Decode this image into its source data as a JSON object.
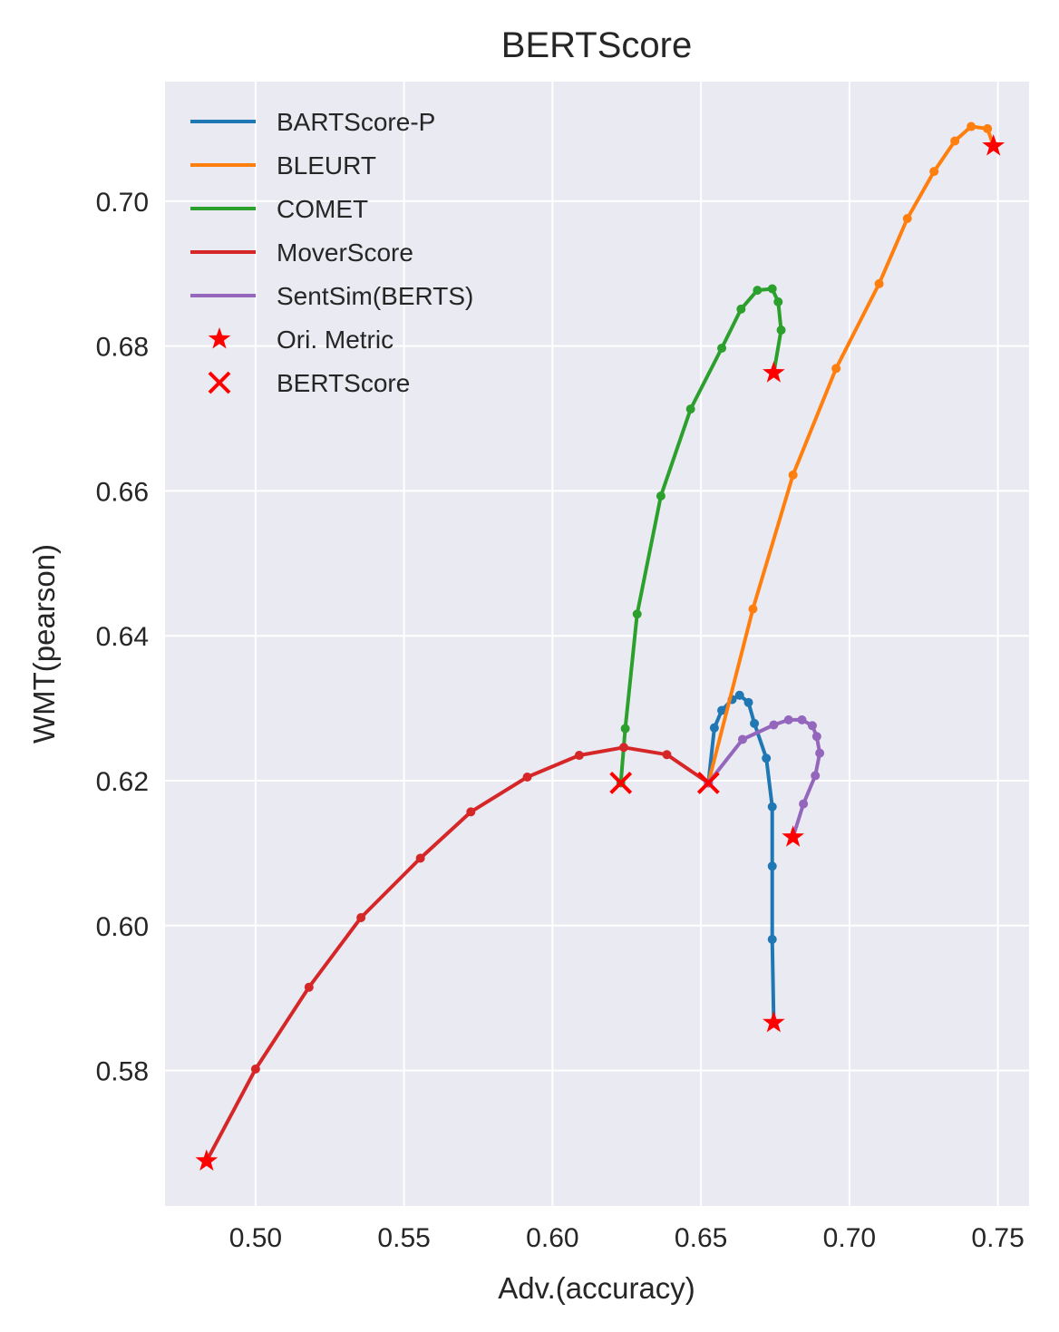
{
  "chart_data": {
    "type": "line",
    "title": "BERTScore",
    "xlabel": "Adv.(accuracy)",
    "ylabel": "WMT(pearson)",
    "xlim": [
      0.4695,
      0.7605
    ],
    "ylim": [
      0.5613,
      0.7165
    ],
    "xticks": [
      0.5,
      0.55,
      0.6,
      0.65,
      0.7,
      0.75
    ],
    "xtick_labels": [
      "0.50",
      "0.55",
      "0.60",
      "0.65",
      "0.70",
      "0.75"
    ],
    "yticks": [
      0.58,
      0.6,
      0.62,
      0.64,
      0.66,
      0.68,
      0.7
    ],
    "ytick_labels": [
      "0.58",
      "0.60",
      "0.62",
      "0.64",
      "0.66",
      "0.68",
      "0.70"
    ],
    "grid": true,
    "legend_position": "top-left",
    "background": "#eaeaf2",
    "series": [
      {
        "name": "BARTScore-P",
        "color": "#1f77b4",
        "x": [
          0.6525,
          0.6545,
          0.657,
          0.6605,
          0.663,
          0.666,
          0.668,
          0.672,
          0.674,
          0.674,
          0.674,
          0.6745
        ],
        "y": [
          0.6197,
          0.6273,
          0.6297,
          0.6312,
          0.6318,
          0.6308,
          0.6279,
          0.6231,
          0.6164,
          0.6082,
          0.5981,
          0.5866
        ]
      },
      {
        "name": "BLEURT",
        "color": "#ff7f0e",
        "x": [
          0.6525,
          0.6675,
          0.681,
          0.6955,
          0.71,
          0.7195,
          0.7285,
          0.7355,
          0.741,
          0.7465,
          0.7485
        ],
        "y": [
          0.6197,
          0.6437,
          0.6622,
          0.6769,
          0.6886,
          0.6976,
          0.7041,
          0.7083,
          0.7103,
          0.71,
          0.7076
        ]
      },
      {
        "name": "COMET",
        "color": "#2ca02c",
        "x": [
          0.623,
          0.6245,
          0.6285,
          0.6365,
          0.6465,
          0.657,
          0.6635,
          0.669,
          0.674,
          0.676,
          0.677,
          0.6745
        ],
        "y": [
          0.6197,
          0.6272,
          0.643,
          0.6593,
          0.6713,
          0.6797,
          0.6851,
          0.6877,
          0.6879,
          0.6861,
          0.6822,
          0.6763
        ]
      },
      {
        "name": "MoverScore",
        "color": "#d62728",
        "x": [
          0.6525,
          0.6385,
          0.624,
          0.609,
          0.5915,
          0.5725,
          0.5555,
          0.5355,
          0.518,
          0.5,
          0.4835
        ],
        "y": [
          0.6197,
          0.6236,
          0.6246,
          0.6235,
          0.6205,
          0.6157,
          0.6093,
          0.6011,
          0.5915,
          0.5802,
          0.5675
        ]
      },
      {
        "name": "SentSim(BERTS)",
        "color": "#9467bd",
        "x": [
          0.6525,
          0.664,
          0.6745,
          0.6795,
          0.684,
          0.6875,
          0.689,
          0.69,
          0.6885,
          0.6845,
          0.681
        ],
        "y": [
          0.6197,
          0.6257,
          0.6277,
          0.6284,
          0.6284,
          0.6276,
          0.6261,
          0.6238,
          0.6207,
          0.6168,
          0.6122
        ]
      }
    ],
    "markers": [
      {
        "name": "Ori. Metric",
        "symbol": "star",
        "color": "#ff0000",
        "points": [
          [
            0.6745,
            0.5866
          ],
          [
            0.7485,
            0.7076
          ],
          [
            0.6745,
            0.6763
          ],
          [
            0.4835,
            0.5675
          ],
          [
            0.681,
            0.6122
          ]
        ]
      },
      {
        "name": "BERTScore",
        "symbol": "x",
        "color": "#ff0000",
        "points": [
          [
            0.6525,
            0.6197
          ],
          [
            0.623,
            0.6197
          ]
        ]
      }
    ]
  }
}
